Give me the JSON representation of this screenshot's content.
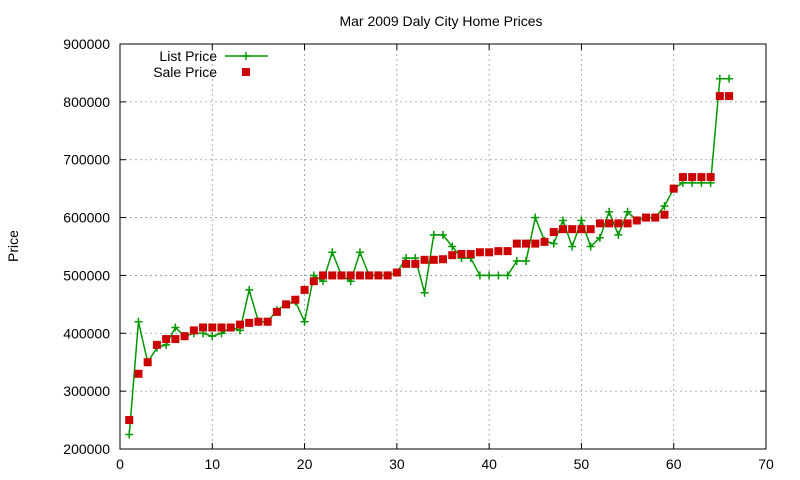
{
  "chart_data": {
    "type": "line",
    "title": "Mar 2009 Daly City Home Prices",
    "xlabel": "",
    "ylabel": "Price",
    "xlim": [
      0,
      70
    ],
    "ylim": [
      200000,
      900000
    ],
    "xticks": [
      0,
      10,
      20,
      30,
      40,
      50,
      60,
      70
    ],
    "yticks": [
      200000,
      300000,
      400000,
      500000,
      600000,
      700000,
      800000,
      900000
    ],
    "grid": true,
    "legend_position": "top-left",
    "series": [
      {
        "name": "List Price",
        "style": "line-plus",
        "color": "#009900",
        "x": [
          1,
          2,
          3,
          4,
          5,
          6,
          7,
          8,
          9,
          10,
          11,
          12,
          13,
          14,
          15,
          16,
          17,
          18,
          19,
          20,
          21,
          22,
          23,
          24,
          25,
          26,
          27,
          28,
          29,
          30,
          31,
          32,
          33,
          34,
          35,
          36,
          37,
          38,
          39,
          40,
          41,
          42,
          43,
          44,
          45,
          46,
          47,
          48,
          49,
          50,
          51,
          52,
          53,
          54,
          55,
          56,
          57,
          58,
          59,
          60,
          61,
          62,
          63,
          64,
          65,
          66
        ],
        "y": [
          225000,
          420000,
          350000,
          375000,
          380000,
          410000,
          395000,
          400000,
          400000,
          395000,
          400000,
          410000,
          405000,
          475000,
          420000,
          420000,
          440000,
          450000,
          455000,
          420000,
          500000,
          490000,
          540000,
          500000,
          490000,
          540000,
          500000,
          500000,
          500000,
          505000,
          530000,
          530000,
          470000,
          570000,
          570000,
          550000,
          530000,
          530000,
          500000,
          500000,
          500000,
          500000,
          525000,
          525000,
          600000,
          560000,
          555000,
          595000,
          550000,
          595000,
          550000,
          565000,
          610000,
          570000,
          610000,
          595000,
          600000,
          600000,
          620000,
          650000,
          660000,
          660000,
          660000,
          660000,
          840000,
          840000
        ]
      },
      {
        "name": "Sale Price",
        "style": "square",
        "color": "#cc0000",
        "x": [
          1,
          2,
          3,
          4,
          5,
          6,
          7,
          8,
          9,
          10,
          11,
          12,
          13,
          14,
          15,
          16,
          17,
          18,
          19,
          20,
          21,
          22,
          23,
          24,
          25,
          26,
          27,
          28,
          29,
          30,
          31,
          32,
          33,
          34,
          35,
          36,
          37,
          38,
          39,
          40,
          41,
          42,
          43,
          44,
          45,
          46,
          47,
          48,
          49,
          50,
          51,
          52,
          53,
          54,
          55,
          56,
          57,
          58,
          59,
          60,
          61,
          62,
          63,
          64,
          65,
          66
        ],
        "y": [
          250000,
          330000,
          350000,
          380000,
          390000,
          390000,
          395000,
          405000,
          410000,
          410000,
          410000,
          410000,
          415000,
          418000,
          420000,
          420000,
          437000,
          450000,
          458000,
          475000,
          490000,
          500000,
          500000,
          500000,
          500000,
          500000,
          500000,
          500000,
          500000,
          505000,
          520000,
          520000,
          527000,
          527000,
          528000,
          535000,
          537000,
          537000,
          540000,
          540000,
          542000,
          542000,
          555000,
          555000,
          555000,
          558000,
          575000,
          580000,
          580000,
          580000,
          580000,
          590000,
          590000,
          590000,
          590000,
          595000,
          600000,
          600000,
          605000,
          650000,
          670000,
          670000,
          670000,
          670000,
          810000,
          810000
        ]
      }
    ]
  }
}
